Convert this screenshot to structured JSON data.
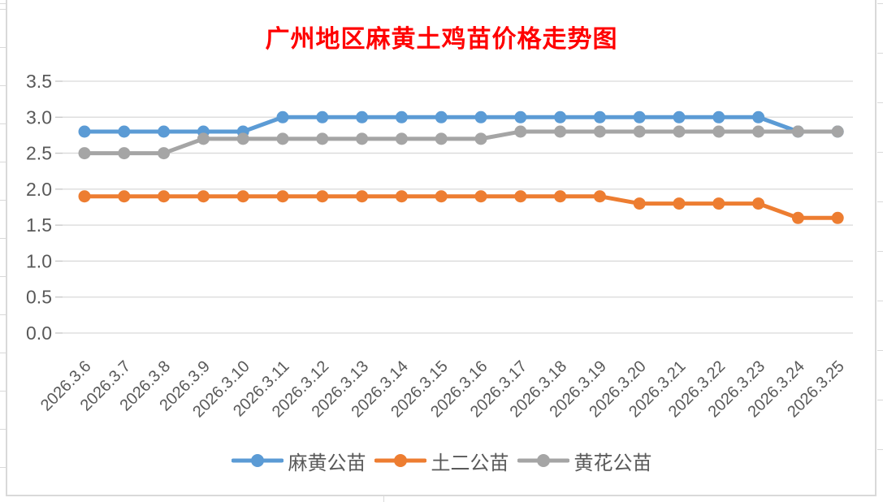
{
  "chart_data": {
    "type": "line",
    "title": "广州地区麻黄土鸡苗价格走势图",
    "title_color": "#FF0000",
    "categories": [
      "2026.3.6",
      "2026.3.7",
      "2026.3.8",
      "2026.3.9",
      "2026.3.10",
      "2026.3.11",
      "2026.3.12",
      "2026.3.13",
      "2026.3.14",
      "2026.3.15",
      "2026.3.16",
      "2026.3.17",
      "2026.3.18",
      "2026.3.19",
      "2026.3.20",
      "2026.3.21",
      "2026.3.22",
      "2026.3.23",
      "2026.3.24",
      "2026.3.25"
    ],
    "series": [
      {
        "name": "麻黄公苗",
        "color": "#5B9BD5",
        "values": [
          2.8,
          2.8,
          2.8,
          2.8,
          2.8,
          3.0,
          3.0,
          3.0,
          3.0,
          3.0,
          3.0,
          3.0,
          3.0,
          3.0,
          3.0,
          3.0,
          3.0,
          3.0,
          2.8,
          2.8
        ]
      },
      {
        "name": "土二公苗",
        "color": "#ED7D31",
        "values": [
          1.9,
          1.9,
          1.9,
          1.9,
          1.9,
          1.9,
          1.9,
          1.9,
          1.9,
          1.9,
          1.9,
          1.9,
          1.9,
          1.9,
          1.8,
          1.8,
          1.8,
          1.8,
          1.6,
          1.6
        ]
      },
      {
        "name": "黄花公苗",
        "color": "#A5A5A5",
        "values": [
          2.5,
          2.5,
          2.5,
          2.7,
          2.7,
          2.7,
          2.7,
          2.7,
          2.7,
          2.7,
          2.7,
          2.8,
          2.8,
          2.8,
          2.8,
          2.8,
          2.8,
          2.8,
          2.8,
          2.8
        ]
      }
    ],
    "y_tick_labels": [
      "0.0",
      "0.5",
      "1.0",
      "1.5",
      "2.0",
      "2.5",
      "3.0",
      "3.5"
    ],
    "ylim": [
      0,
      3.5
    ],
    "grid": true,
    "legend_position": "bottom",
    "axis_label_color": "#595959",
    "gridline_color": "#D9D9D9"
  }
}
